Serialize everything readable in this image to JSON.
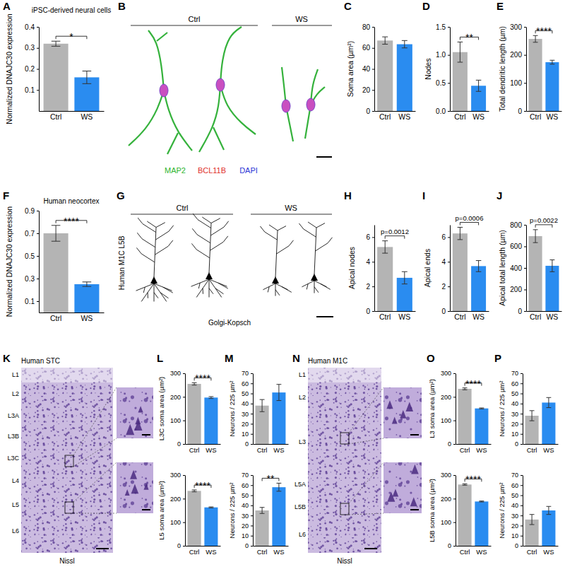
{
  "panel_labels": [
    "A",
    "B",
    "C",
    "D",
    "E",
    "F",
    "G",
    "H",
    "I",
    "J",
    "K",
    "L",
    "M",
    "N",
    "O",
    "P"
  ],
  "chart_data": [
    {
      "type": "bar",
      "title": "iPSC-derived neural cells",
      "y_label": "Normalized DNAJC30 expression",
      "categories": [
        "Ctrl",
        "WS"
      ],
      "values": [
        0.32,
        0.16
      ],
      "errors": [
        0.012,
        0.03
      ],
      "colors": [
        "#b4b4b4",
        "#2a8cf0"
      ],
      "ylim": [
        0,
        0.4
      ],
      "yticks": [
        0.1,
        0.2,
        0.3,
        0.4
      ],
      "annotation": "*"
    },
    {
      "type": "bar",
      "y_label": "Soma area (µm²)",
      "categories": [
        "Ctrl",
        "WS"
      ],
      "values": [
        67,
        63.5
      ],
      "errors": [
        3.5,
        3.5
      ],
      "colors": [
        "#b4b4b4",
        "#2a8cf0"
      ],
      "ylim": [
        0,
        80
      ],
      "yticks": [
        0,
        20,
        40,
        60,
        80
      ]
    },
    {
      "type": "bar",
      "y_label": "Nodes",
      "categories": [
        "Ctrl",
        "WS"
      ],
      "values": [
        1.05,
        0.45
      ],
      "errors": [
        0.18,
        0.1
      ],
      "colors": [
        "#b4b4b4",
        "#2a8cf0"
      ],
      "ylim": [
        0,
        1.5
      ],
      "yticks": [
        {
          "value": 0,
          "label": "0.0"
        },
        0.5,
        {
          "value": 1,
          "label": "1.0"
        },
        1.5
      ],
      "annotation": "**"
    },
    {
      "type": "bar",
      "y_label": "Total dendritic length (µm)",
      "categories": [
        "Ctrl",
        "WS"
      ],
      "values": [
        257,
        174
      ],
      "errors": [
        12,
        7
      ],
      "colors": [
        "#b4b4b4",
        "#2a8cf0"
      ],
      "ylim": [
        0,
        300
      ],
      "yticks": [
        0,
        100,
        200,
        300
      ],
      "annotation": "****"
    },
    {
      "type": "bar",
      "title": "Human neocortex",
      "y_label": "Normalized DNAJC30 expression",
      "categories": [
        "Ctrl",
        "WS"
      ],
      "values": [
        0.7,
        0.25
      ],
      "errors": [
        0.07,
        0.02
      ],
      "colors": [
        "#b4b4b4",
        "#2a8cf0"
      ],
      "ylim": [
        0,
        0.9
      ],
      "yticks": [
        0.1,
        0.3,
        0.5,
        0.7,
        0.9
      ],
      "annotation": "****"
    },
    {
      "type": "bar",
      "y_label": "Apical nodes",
      "categories": [
        "Ctrl",
        "WS"
      ],
      "values": [
        5.2,
        2.7
      ],
      "errors": [
        0.5,
        0.5
      ],
      "colors": [
        "#b4b4b4",
        "#2a8cf0"
      ],
      "ylim": [
        0,
        7
      ],
      "yticks": [
        0,
        2,
        4,
        6
      ],
      "annotation": "p=0.0012"
    },
    {
      "type": "bar",
      "y_label": "Apical ends",
      "categories": [
        "Ctrl",
        "WS"
      ],
      "values": [
        6.3,
        3.65
      ],
      "errors": [
        0.5,
        0.45
      ],
      "colors": [
        "#b4b4b4",
        "#2a8cf0"
      ],
      "ylim": [
        0,
        7
      ],
      "yticks": [
        0,
        2,
        4,
        6
      ],
      "annotation": "p=0.0006"
    },
    {
      "type": "bar",
      "y_label": "Apical total length (µm)",
      "categories": [
        "Ctrl",
        "WS"
      ],
      "values": [
        695,
        420
      ],
      "errors": [
        60,
        55
      ],
      "colors": [
        "#b4b4b4",
        "#2a8cf0"
      ],
      "ylim": [
        0,
        800
      ],
      "yticks": [
        0,
        200,
        400,
        600,
        800
      ],
      "annotation": "p=0.0022"
    },
    {
      "type": "bar",
      "y_label": "L3C soma area (µm²)",
      "categories": [
        "Ctrl",
        "WS"
      ],
      "values": [
        255,
        197
      ],
      "errors": [
        5,
        4
      ],
      "colors": [
        "#b4b4b4",
        "#2a8cf0"
      ],
      "ylim": [
        0,
        300
      ],
      "yticks": [
        0,
        100,
        200,
        300
      ],
      "annotation": "****"
    },
    {
      "type": "bar",
      "y_label": "L5 soma area (µm²)",
      "categories": [
        "Ctrl",
        "WS"
      ],
      "values": [
        233,
        163
      ],
      "errors": [
        4,
        2
      ],
      "colors": [
        "#b4b4b4",
        "#2a8cf0"
      ],
      "ylim": [
        0,
        300
      ],
      "yticks": [
        0,
        100,
        200,
        300
      ],
      "annotation": "****"
    },
    {
      "type": "bar",
      "y_label": "Neurons / 225 µm²",
      "categories": [
        "Ctrl",
        "WS"
      ],
      "values": [
        38,
        51
      ],
      "errors": [
        6,
        8
      ],
      "colors": [
        "#b4b4b4",
        "#2a8cf0"
      ],
      "ylim": [
        0,
        70
      ],
      "yticks": [
        0,
        10,
        20,
        30,
        40,
        50,
        60,
        70
      ]
    },
    {
      "type": "bar",
      "y_label": "Neurons / 225 µm²",
      "categories": [
        "Ctrl",
        "WS"
      ],
      "values": [
        35,
        58
      ],
      "errors": [
        3,
        4
      ],
      "colors": [
        "#b4b4b4",
        "#2a8cf0"
      ],
      "ylim": [
        0,
        70
      ],
      "yticks": [
        0,
        10,
        20,
        30,
        40,
        50,
        60,
        70
      ],
      "annotation": "**"
    },
    {
      "type": "bar",
      "y_label": "L3 soma area (µm²)",
      "categories": [
        "Ctrl",
        "WS"
      ],
      "values": [
        234,
        151
      ],
      "errors": [
        4,
        2
      ],
      "colors": [
        "#b4b4b4",
        "#2a8cf0"
      ],
      "ylim": [
        0,
        300
      ],
      "yticks": [
        0,
        100,
        200,
        300
      ],
      "annotation": "****"
    },
    {
      "type": "bar",
      "y_label": "L5B soma area (µm²)",
      "categories": [
        "Ctrl",
        "WS"
      ],
      "values": [
        260,
        188
      ],
      "errors": [
        3,
        2
      ],
      "colors": [
        "#b4b4b4",
        "#2a8cf0"
      ],
      "ylim": [
        0,
        300
      ],
      "yticks": [
        0,
        100,
        200,
        300
      ],
      "annotation": "****"
    },
    {
      "type": "bar",
      "y_label": "Neurons / 225 µm²",
      "categories": [
        "Ctrl",
        "WS"
      ],
      "values": [
        28,
        41
      ],
      "errors": [
        5,
        5
      ],
      "colors": [
        "#b4b4b4",
        "#2a8cf0"
      ],
      "ylim": [
        0,
        70
      ],
      "yticks": [
        0,
        10,
        20,
        30,
        40,
        50,
        60,
        70
      ]
    },
    {
      "type": "bar",
      "y_label": "Neurons / 225 µm²",
      "categories": [
        "Ctrl",
        "WS"
      ],
      "values": [
        26,
        35
      ],
      "errors": [
        5,
        4
      ],
      "colors": [
        "#b4b4b4",
        "#2a8cf0"
      ],
      "ylim": [
        0,
        70
      ],
      "yticks": [
        0,
        10,
        20,
        30,
        40,
        50,
        60,
        70
      ]
    }
  ],
  "images": {
    "B": {
      "headers": [
        "Ctrl",
        "WS"
      ],
      "legend": [
        {
          "label": "MAP2",
          "color": "#2fb52f"
        },
        {
          "label": "BCL11B",
          "color": "#e0302a"
        },
        {
          "label": "DAPI",
          "color": "#2d35d6"
        }
      ]
    },
    "G": {
      "headers": [
        "Ctrl",
        "WS"
      ],
      "side_label": "Human M1C L5B",
      "caption": "Golgi-Kopsch"
    },
    "K": {
      "title": "Human STC",
      "layers": [
        "L1",
        "L2",
        "L3A",
        "L3B",
        "L3C",
        "L4",
        "L5",
        "L6"
      ],
      "caption": "Nissl"
    },
    "N": {
      "title": "Human M1C",
      "layers": [
        "L1",
        "L2",
        "L3",
        "L5A",
        "L5B",
        "L6"
      ],
      "caption": "Nissl"
    }
  }
}
